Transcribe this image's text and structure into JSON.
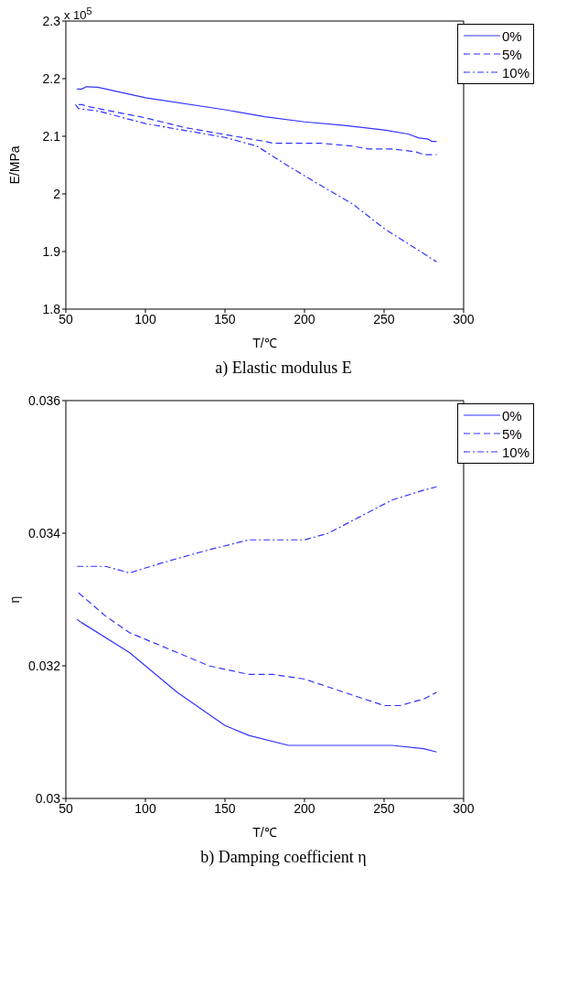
{
  "chart_data": [
    {
      "type": "line",
      "title": "a) Elastic modulus E",
      "xlabel": "T/℃",
      "ylabel": "E/MPa",
      "annotations": [
        "x 10$^{5}$"
      ],
      "xlim": [
        50,
        300
      ],
      "xticks": [
        50,
        100,
        150,
        200,
        250,
        300
      ],
      "ylim": [
        1.8,
        2.3
      ],
      "yticks": [
        1.8,
        1.9,
        2,
        2.1,
        2.2,
        2.3
      ],
      "legend": "top right",
      "series": [
        {
          "name": "0%",
          "color": "#3333ff",
          "line_style": "solid",
          "x": [
            57,
            60,
            63,
            70,
            100,
            150,
            175,
            200,
            225,
            250,
            265,
            272,
            278,
            280,
            283
          ],
          "values": [
            2.182,
            2.182,
            2.186,
            2.185,
            2.167,
            2.146,
            2.134,
            2.125,
            2.119,
            2.111,
            2.104,
            2.097,
            2.095,
            2.091,
            2.091
          ]
        },
        {
          "name": "5%",
          "color": "#3333ff",
          "line_style": "dashed",
          "x": [
            58,
            60,
            65,
            100,
            125,
            150,
            175,
            180,
            210,
            230,
            240,
            255,
            270,
            275,
            283
          ],
          "values": [
            2.155,
            2.155,
            2.151,
            2.132,
            2.115,
            2.103,
            2.091,
            2.088,
            2.088,
            2.083,
            2.078,
            2.078,
            2.073,
            2.068,
            2.068
          ]
        },
        {
          "name": "10%",
          "color": "#3333ff",
          "line_style": "dashdot",
          "x": [
            56,
            58,
            70,
            100,
            150,
            170,
            190,
            210,
            230,
            250,
            270,
            283
          ],
          "values": [
            2.155,
            2.148,
            2.144,
            2.122,
            2.098,
            2.083,
            2.048,
            2.015,
            1.983,
            1.94,
            1.905,
            1.882
          ]
        }
      ]
    },
    {
      "type": "line",
      "title": "b) Damping coefficient η",
      "xlabel": "T/℃",
      "ylabel": "η",
      "xlim": [
        50,
        300
      ],
      "xticks": [
        50,
        100,
        150,
        200,
        250,
        300
      ],
      "ylim": [
        0.03,
        0.036
      ],
      "yticks": [
        0.03,
        0.032,
        0.034,
        0.036
      ],
      "legend": "top right",
      "series": [
        {
          "name": "0%",
          "color": "#3333ff",
          "line_style": "solid",
          "x": [
            57,
            60,
            90,
            120,
            150,
            165,
            190,
            200,
            255,
            275,
            283
          ],
          "values": [
            0.0327,
            0.03265,
            0.0322,
            0.0316,
            0.0311,
            0.03095,
            0.0308,
            0.0308,
            0.0308,
            0.03075,
            0.0307
          ]
        },
        {
          "name": "5%",
          "color": "#3333ff",
          "line_style": "dashed",
          "x": [
            58,
            75,
            90,
            110,
            140,
            165,
            180,
            200,
            225,
            250,
            260,
            275,
            283
          ],
          "values": [
            0.0331,
            0.03275,
            0.0325,
            0.0323,
            0.032,
            0.03187,
            0.03187,
            0.0318,
            0.0316,
            0.0314,
            0.0314,
            0.0315,
            0.0316
          ]
        },
        {
          "name": "10%",
          "color": "#3333ff",
          "line_style": "dashdot",
          "x": [
            57,
            75,
            90,
            110,
            140,
            165,
            200,
            215,
            235,
            255,
            275,
            283
          ],
          "values": [
            0.0335,
            0.0335,
            0.0334,
            0.03355,
            0.03375,
            0.0339,
            0.0339,
            0.034,
            0.03425,
            0.0345,
            0.03465,
            0.0347
          ]
        }
      ]
    }
  ]
}
